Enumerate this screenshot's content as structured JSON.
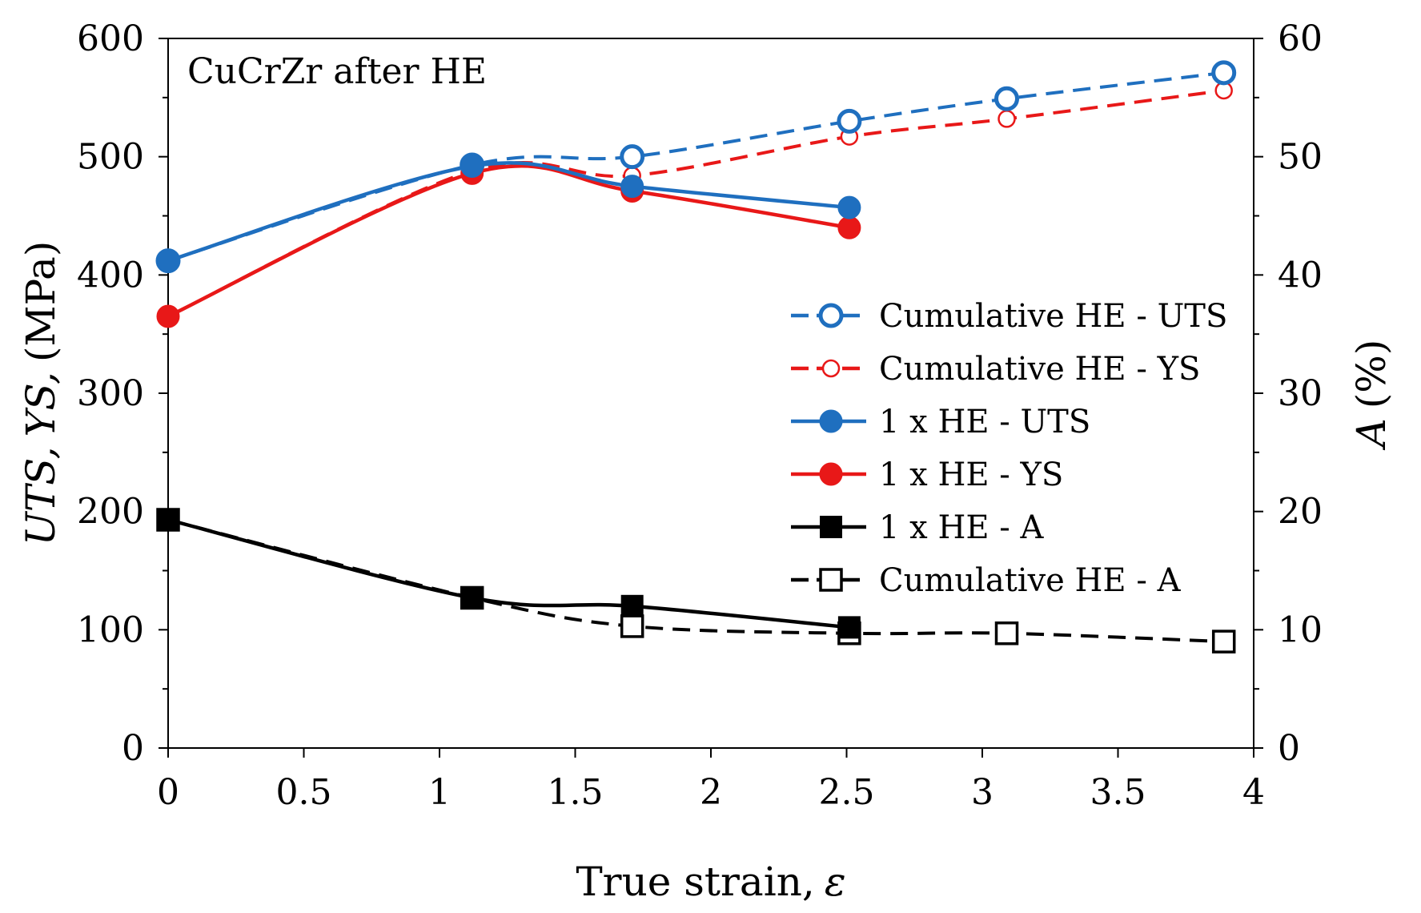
{
  "chart_data": {
    "type": "line",
    "annotation": "CuCrZr after HE",
    "xlabel": "True strain,",
    "xlabel_symbol": "ε",
    "ylabel_left": {
      "italic1": "UTS,",
      "italic2": "YS,",
      "rest": "(MPa)"
    },
    "ylabel_right": {
      "italic": "A",
      "rest": "(%)"
    },
    "xlim": [
      0,
      4
    ],
    "ylim_left": [
      0,
      600
    ],
    "ylim_right": [
      0,
      60
    ],
    "x_ticks": [
      "0",
      "0.5",
      "1",
      "1.5",
      "2",
      "2.5",
      "3",
      "3.5",
      "4"
    ],
    "y_left_ticks": [
      "0",
      "100",
      "200",
      "300",
      "400",
      "500",
      "600"
    ],
    "y_right_ticks": [
      "0",
      "10",
      "20",
      "30",
      "40",
      "50",
      "60"
    ],
    "series": [
      {
        "name": "Cumulative HE - UTS",
        "axis": "left",
        "color": "#1f6fbf",
        "dash": true,
        "marker": "open-circle",
        "size": "large",
        "x": [
          0,
          1.12,
          1.71,
          2.51,
          3.09,
          3.89
        ],
        "y": [
          412,
          493,
          500,
          530,
          549,
          571
        ]
      },
      {
        "name": "Cumulative HE - YS",
        "axis": "left",
        "color": "#e81818",
        "dash": true,
        "marker": "open-circle",
        "size": "small",
        "x": [
          0,
          1.12,
          1.71,
          2.51,
          3.09,
          3.89
        ],
        "y": [
          365,
          488,
          484,
          517,
          532,
          556
        ]
      },
      {
        "name": "1 x HE - UTS",
        "axis": "left",
        "color": "#1f6fbf",
        "dash": false,
        "marker": "filled-circle",
        "size": "large",
        "x": [
          0,
          1.12,
          1.71,
          2.51
        ],
        "y": [
          412,
          492,
          475,
          457
        ]
      },
      {
        "name": "1 x HE - YS",
        "axis": "left",
        "color": "#e81818",
        "dash": false,
        "marker": "filled-circle",
        "size": "large",
        "x": [
          0,
          1.12,
          1.71,
          2.51
        ],
        "y": [
          365,
          486,
          471,
          440
        ]
      },
      {
        "name": "1 x HE - A",
        "axis": "right",
        "color": "#000000",
        "dash": false,
        "marker": "filled-square",
        "size": "large",
        "x": [
          0,
          1.12,
          1.71,
          2.51
        ],
        "y": [
          19.3,
          12.7,
          12.0,
          10.2
        ]
      },
      {
        "name": "Cumulative HE - A",
        "axis": "right",
        "color": "#000000",
        "dash": true,
        "marker": "open-square",
        "size": "large",
        "x": [
          0,
          1.12,
          1.71,
          2.51,
          3.09,
          3.89
        ],
        "y": [
          19.3,
          12.7,
          10.3,
          9.7,
          9.7,
          9.0
        ]
      }
    ],
    "legend_order": [
      0,
      1,
      2,
      3,
      4,
      5
    ],
    "legend_placement": "right-middle",
    "grid": false
  }
}
